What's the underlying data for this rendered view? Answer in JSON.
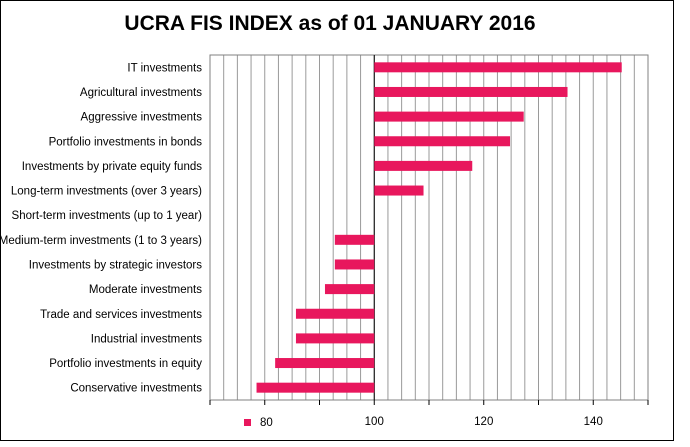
{
  "chart_data": {
    "type": "bar",
    "orientation": "horizontal",
    "title": "UCRA FIS INDEX as of 01 JANUARY 2016",
    "baseline": 100,
    "categories": [
      "IT investments",
      "Agricultural investments",
      "Aggressive investments",
      "Portfolio investments in bonds",
      "Investments by private equity funds",
      "Long-term investments (over 3 years)",
      "Short-term investments (up to 1 year)",
      "Medium-term investments (1 to 3 years)",
      "Investments by strategic investors",
      "Moderate investments",
      "Trade and services investments",
      "Industrial investments",
      "Portfolio investments in equity",
      "Conservative investments"
    ],
    "values": [
      145.2,
      135.3,
      127.3,
      124.8,
      117.9,
      109.0,
      100.0,
      92.8,
      92.8,
      91.0,
      85.7,
      85.7,
      81.9,
      78.5
    ],
    "xlim": [
      70,
      150
    ],
    "xticks": [
      80,
      100,
      120,
      140
    ],
    "gridlines": "vertical",
    "legend": "bottom-left",
    "bar_color": "#E8175D"
  }
}
